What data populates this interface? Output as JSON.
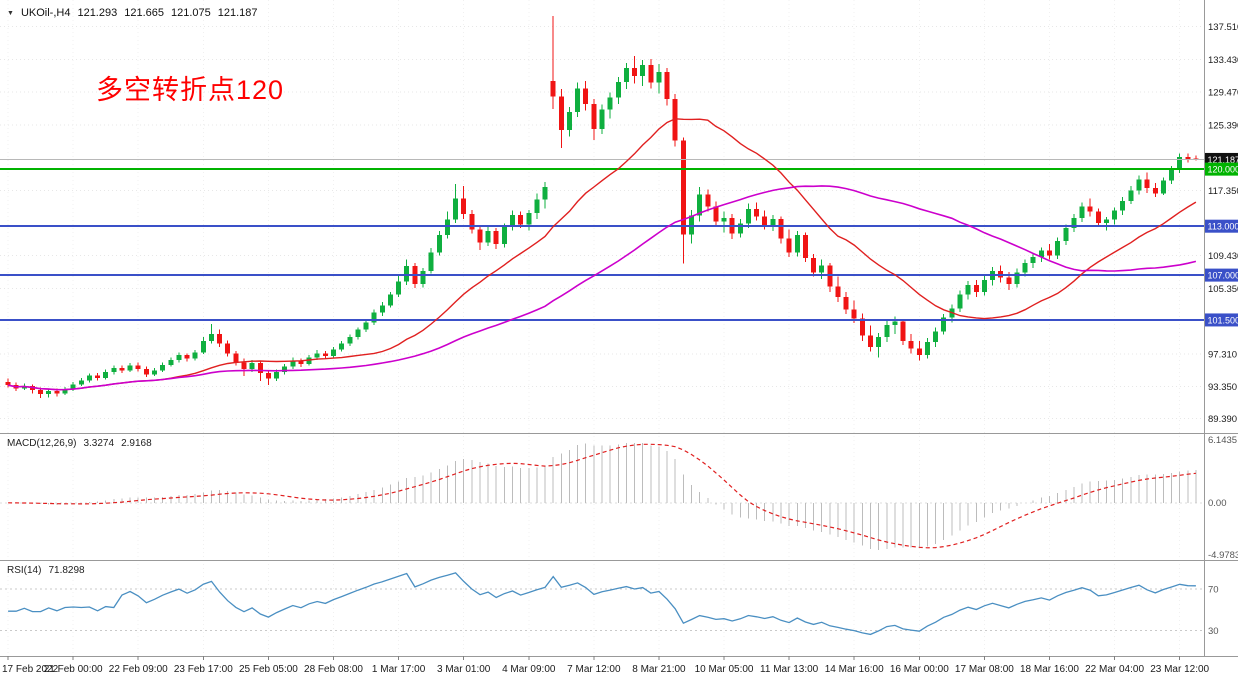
{
  "window": {
    "symbol_tf": "UKOil-,H4",
    "open": "121.293",
    "high": "121.665",
    "low": "121.075",
    "close": "121.187"
  },
  "icons": {
    "symbol_dropdown": "▼"
  },
  "annotation": {
    "text": "多空转折点120",
    "color": "#ff0000"
  },
  "colors": {
    "background": "#ffffff",
    "bull": "#0faf3f",
    "bear": "#f01414",
    "macd_hist": "#bcbcbc",
    "macd_signal": "#e02020",
    "rsi_line": "#4a8fc2",
    "rsi_levels": "#c9c9c9",
    "axis_text": "#1a1a1a",
    "axis_secondary": "#555555",
    "grid": "#e7e7e7",
    "grid_vertical": "#f0f0f0",
    "separator": "#999999",
    "bid_line": "#b8b8b8"
  },
  "chart_data": {
    "type": "candlestick",
    "title": "UKOil- H4",
    "price_range": [
      88.0,
      140.5
    ],
    "x_label_bar_interval": 8,
    "x_labels": [
      "17 Feb 2022",
      "21 Feb 00:00",
      "22 Feb 09:00",
      "23 Feb 17:00",
      "25 Feb 05:00",
      "28 Feb 08:00",
      "1 Mar 17:00",
      "3 Mar 01:00",
      "4 Mar 09:00",
      "7 Mar 12:00",
      "8 Mar 21:00",
      "10 Mar 05:00",
      "11 Mar 13:00",
      "14 Mar 16:00",
      "16 Mar 00:00",
      "17 Mar 08:00",
      "18 Mar 16:00",
      "22 Mar 04:00",
      "23 Mar 12:00"
    ],
    "price_axis_ticks": [
      {
        "price": 137.51,
        "label": "137.510"
      },
      {
        "price": 133.43,
        "label": "133.430"
      },
      {
        "price": 129.47,
        "label": "129.470"
      },
      {
        "price": 125.39,
        "label": "125.390"
      },
      {
        "price": 117.35,
        "label": "117.350"
      },
      {
        "price": 109.43,
        "label": "109.430"
      },
      {
        "price": 105.35,
        "label": "105.350"
      },
      {
        "price": 97.31,
        "label": "97.310"
      },
      {
        "price": 93.35,
        "label": "93.350"
      },
      {
        "price": 89.39,
        "label": "89.390"
      }
    ],
    "levels": [
      {
        "price": 121.187,
        "label": "121.187",
        "color": "#111111",
        "type": "bid"
      },
      {
        "price": 120.0,
        "label": "120.000",
        "color": "#00b300",
        "type": "hline"
      },
      {
        "price": 113.0,
        "label": "113.000",
        "color": "#3a50c8",
        "type": "hline"
      },
      {
        "price": 107.0,
        "label": "107.000",
        "color": "#3a50c8",
        "type": "hline"
      },
      {
        "price": 101.5,
        "label": "101.500",
        "color": "#3a50c8",
        "type": "hline"
      }
    ],
    "overlays": {
      "sma_fast": {
        "period": 20,
        "color": "#e02020"
      },
      "sma_slow": {
        "period": 50,
        "color": "#cc00cc"
      }
    },
    "indicators": [
      {
        "name": "MACD",
        "label": "MACD(12,26,9)",
        "params": [
          12,
          26,
          9
        ],
        "values_text": [
          "3.3274",
          "2.9168"
        ],
        "axis_labels": [
          "6.1435",
          "0.00",
          "-4.9783"
        ]
      },
      {
        "name": "RSI",
        "label": "RSI(14)",
        "params": [
          14
        ],
        "values_text": [
          "71.8298"
        ],
        "levels": [
          70,
          30
        ],
        "axis_labels": [
          "70",
          "30"
        ]
      }
    ],
    "candles": [
      [
        93.9,
        94.3,
        93.2,
        93.5
      ],
      [
        93.5,
        93.8,
        92.8,
        93.1
      ],
      [
        93.1,
        93.7,
        92.9,
        93.4
      ],
      [
        93.4,
        93.6,
        92.5,
        92.9
      ],
      [
        92.9,
        93.2,
        91.9,
        92.4
      ],
      [
        92.4,
        93,
        92,
        92.8
      ],
      [
        92.8,
        93.1,
        92.1,
        92.5
      ],
      [
        92.5,
        93.3,
        92.3,
        93
      ],
      [
        93,
        93.9,
        92.8,
        93.6
      ],
      [
        93.6,
        94.4,
        93.4,
        94.1
      ],
      [
        94.1,
        94.9,
        93.8,
        94.7
      ],
      [
        94.7,
        95,
        94.1,
        94.4
      ],
      [
        94.4,
        95.4,
        94.2,
        95.1
      ],
      [
        95.1,
        95.9,
        94.8,
        95.6
      ],
      [
        95.6,
        95.9,
        95,
        95.3
      ],
      [
        95.3,
        96.2,
        95.1,
        95.9
      ],
      [
        95.9,
        96.3,
        95.2,
        95.5
      ],
      [
        95.5,
        95.8,
        94.5,
        94.8
      ],
      [
        94.8,
        95.6,
        94.6,
        95.3
      ],
      [
        95.3,
        96.3,
        95.1,
        96
      ],
      [
        96,
        96.9,
        95.8,
        96.6
      ],
      [
        96.6,
        97.5,
        96.3,
        97.2
      ],
      [
        97.2,
        97.4,
        96.4,
        96.8
      ],
      [
        96.8,
        97.8,
        96.5,
        97.5
      ],
      [
        97.5,
        99.4,
        97.3,
        98.9
      ],
      [
        98.9,
        101,
        98.6,
        99.8
      ],
      [
        99.8,
        100.3,
        98.2,
        98.6
      ],
      [
        98.6,
        99,
        97,
        97.4
      ],
      [
        97.4,
        97.7,
        95.9,
        96.3
      ],
      [
        96.3,
        96.8,
        94.6,
        95.5
      ],
      [
        95.5,
        96.6,
        95.1,
        96.2
      ],
      [
        96.2,
        96.5,
        94,
        95
      ],
      [
        95,
        95.3,
        93.5,
        94.3
      ],
      [
        94.3,
        95.4,
        94,
        95.1
      ],
      [
        95.1,
        96.1,
        94.8,
        95.8
      ],
      [
        95.8,
        96.9,
        95.5,
        96.5
      ],
      [
        96.5,
        96.8,
        95.7,
        96.1
      ],
      [
        96.1,
        97.2,
        95.9,
        96.9
      ],
      [
        96.9,
        97.8,
        96.6,
        97.4
      ],
      [
        97.4,
        97.7,
        96.7,
        97.1
      ],
      [
        97.1,
        98.2,
        96.9,
        97.9
      ],
      [
        97.9,
        98.9,
        97.6,
        98.6
      ],
      [
        98.6,
        99.7,
        98.3,
        99.4
      ],
      [
        99.4,
        100.6,
        99.1,
        100.3
      ],
      [
        100.3,
        101.6,
        100,
        101.2
      ],
      [
        101.2,
        102.8,
        100.9,
        102.4
      ],
      [
        102.4,
        103.7,
        102,
        103.3
      ],
      [
        103.3,
        104.9,
        103,
        104.6
      ],
      [
        104.6,
        106.9,
        104.3,
        106.2
      ],
      [
        106.2,
        108.9,
        105.8,
        108.1
      ],
      [
        108.1,
        108.5,
        105.4,
        105.9
      ],
      [
        105.9,
        107.9,
        105.5,
        107.5
      ],
      [
        107.5,
        110.3,
        107.2,
        109.8
      ],
      [
        109.8,
        112.4,
        109.4,
        111.9
      ],
      [
        111.9,
        114.8,
        111.5,
        113.8
      ],
      [
        113.8,
        118.2,
        113.4,
        116.4
      ],
      [
        116.4,
        117.9,
        113.9,
        114.5
      ],
      [
        114.5,
        115,
        112.1,
        112.6
      ],
      [
        112.6,
        113.1,
        110.1,
        111
      ],
      [
        111,
        112.9,
        110.6,
        112.4
      ],
      [
        112.4,
        112.8,
        110.2,
        110.8
      ],
      [
        110.8,
        113.3,
        110.4,
        112.9
      ],
      [
        112.9,
        114.9,
        112.5,
        114.4
      ],
      [
        114.4,
        114.8,
        112.8,
        113.2
      ],
      [
        113.2,
        115,
        112.5,
        114.6
      ],
      [
        114.6,
        117,
        113.9,
        116.3
      ],
      [
        116.3,
        118.4,
        115.2,
        117.8
      ],
      [
        130.8,
        138.8,
        127.4,
        128.9
      ],
      [
        128.9,
        129.8,
        122.6,
        124.8
      ],
      [
        124.8,
        127.6,
        124,
        127
      ],
      [
        127,
        130.6,
        126.4,
        129.9
      ],
      [
        129.9,
        130.8,
        127.2,
        128
      ],
      [
        128,
        128.6,
        123.6,
        124.9
      ],
      [
        124.9,
        127.9,
        124.3,
        127.3
      ],
      [
        127.3,
        129.4,
        126.2,
        128.8
      ],
      [
        128.8,
        131.3,
        128,
        130.7
      ],
      [
        130.7,
        133,
        129.8,
        132.4
      ],
      [
        132.4,
        133.9,
        130.5,
        131.4
      ],
      [
        131.4,
        133.4,
        130.2,
        132.8
      ],
      [
        132.8,
        133.5,
        129.9,
        130.6
      ],
      [
        130.6,
        132.9,
        129.3,
        131.9
      ],
      [
        131.9,
        132.4,
        127.8,
        128.6
      ],
      [
        128.6,
        129.2,
        122.8,
        123.5
      ],
      [
        123.5,
        123.9,
        108.4,
        112
      ],
      [
        112,
        115,
        110.9,
        114.3
      ],
      [
        114.3,
        117.8,
        113.6,
        116.9
      ],
      [
        116.9,
        117.5,
        114.8,
        115.4
      ],
      [
        115.4,
        116,
        112.9,
        113.6
      ],
      [
        113.6,
        114.8,
        112.2,
        114
      ],
      [
        114,
        114.5,
        111.4,
        112.1
      ],
      [
        112.1,
        113.9,
        111.6,
        113.3
      ],
      [
        113.3,
        115.8,
        112.8,
        115.1
      ],
      [
        115.1,
        115.9,
        113.7,
        114.2
      ],
      [
        114.2,
        114.9,
        112.6,
        113
      ],
      [
        113,
        114.4,
        112.4,
        113.9
      ],
      [
        113.9,
        114.2,
        110.9,
        111.5
      ],
      [
        111.5,
        112.6,
        109.2,
        109.8
      ],
      [
        109.8,
        112.4,
        109.3,
        111.9
      ],
      [
        111.9,
        112.2,
        108.6,
        109.1
      ],
      [
        109.1,
        109.6,
        106.8,
        107.3
      ],
      [
        107.3,
        108.9,
        106.5,
        108.2
      ],
      [
        108.2,
        108.5,
        104.9,
        105.6
      ],
      [
        105.6,
        106.8,
        103.7,
        104.3
      ],
      [
        104.3,
        104.9,
        102.2,
        102.8
      ],
      [
        102.8,
        103.9,
        101.1,
        101.7
      ],
      [
        101.7,
        102.3,
        98.9,
        99.6
      ],
      [
        99.6,
        100.8,
        97.6,
        98.2
      ],
      [
        98.2,
        99.9,
        96.9,
        99.4
      ],
      [
        99.4,
        101.4,
        98.8,
        100.9
      ],
      [
        100.9,
        101.9,
        99.8,
        101.3
      ],
      [
        101.3,
        101.6,
        98.4,
        98.9
      ],
      [
        98.9,
        99.8,
        97.4,
        98
      ],
      [
        98,
        98.9,
        96.5,
        97.2
      ],
      [
        97.2,
        99.3,
        96.8,
        98.8
      ],
      [
        98.8,
        100.6,
        98.2,
        100.1
      ],
      [
        100.1,
        102.2,
        99.7,
        101.8
      ],
      [
        101.8,
        103.4,
        101.2,
        102.9
      ],
      [
        102.9,
        105.1,
        102.5,
        104.6
      ],
      [
        104.6,
        106.3,
        104,
        105.8
      ],
      [
        105.8,
        106.4,
        104.3,
        104.9
      ],
      [
        104.9,
        106.9,
        104.5,
        106.4
      ],
      [
        106.4,
        108,
        105.7,
        107.5
      ],
      [
        107.5,
        108.2,
        106.1,
        106.7
      ],
      [
        106.7,
        107.4,
        105.2,
        105.9
      ],
      [
        105.9,
        107.8,
        105.5,
        107.3
      ],
      [
        107.3,
        108.9,
        106.8,
        108.5
      ],
      [
        108.5,
        109.7,
        107.9,
        109.2
      ],
      [
        109.2,
        110.4,
        108.6,
        110
      ],
      [
        110,
        110.8,
        108.9,
        109.4
      ],
      [
        109.4,
        111.6,
        109,
        111.2
      ],
      [
        111.2,
        113.2,
        110.7,
        112.8
      ],
      [
        112.8,
        114.5,
        112.3,
        114
      ],
      [
        114,
        115.9,
        113.5,
        115.4
      ],
      [
        115.4,
        116.4,
        114.2,
        114.8
      ],
      [
        114.8,
        115.2,
        112.9,
        113.4
      ],
      [
        113.4,
        114.1,
        112.5,
        113.8
      ],
      [
        113.8,
        115.3,
        113.2,
        114.9
      ],
      [
        114.9,
        116.6,
        114.4,
        116.1
      ],
      [
        116.1,
        117.9,
        115.7,
        117.4
      ],
      [
        117.4,
        119.2,
        116.9,
        118.7
      ],
      [
        118.7,
        119.6,
        117.1,
        117.7
      ],
      [
        117.7,
        118.3,
        116.6,
        117
      ],
      [
        117,
        119,
        116.8,
        118.6
      ],
      [
        118.6,
        120.4,
        118.2,
        119.9
      ],
      [
        119.9,
        121.9,
        119.5,
        121.5
      ],
      [
        121.5,
        121.9,
        120.8,
        121.2
      ],
      [
        121.293,
        121.665,
        121.075,
        121.187
      ]
    ]
  }
}
